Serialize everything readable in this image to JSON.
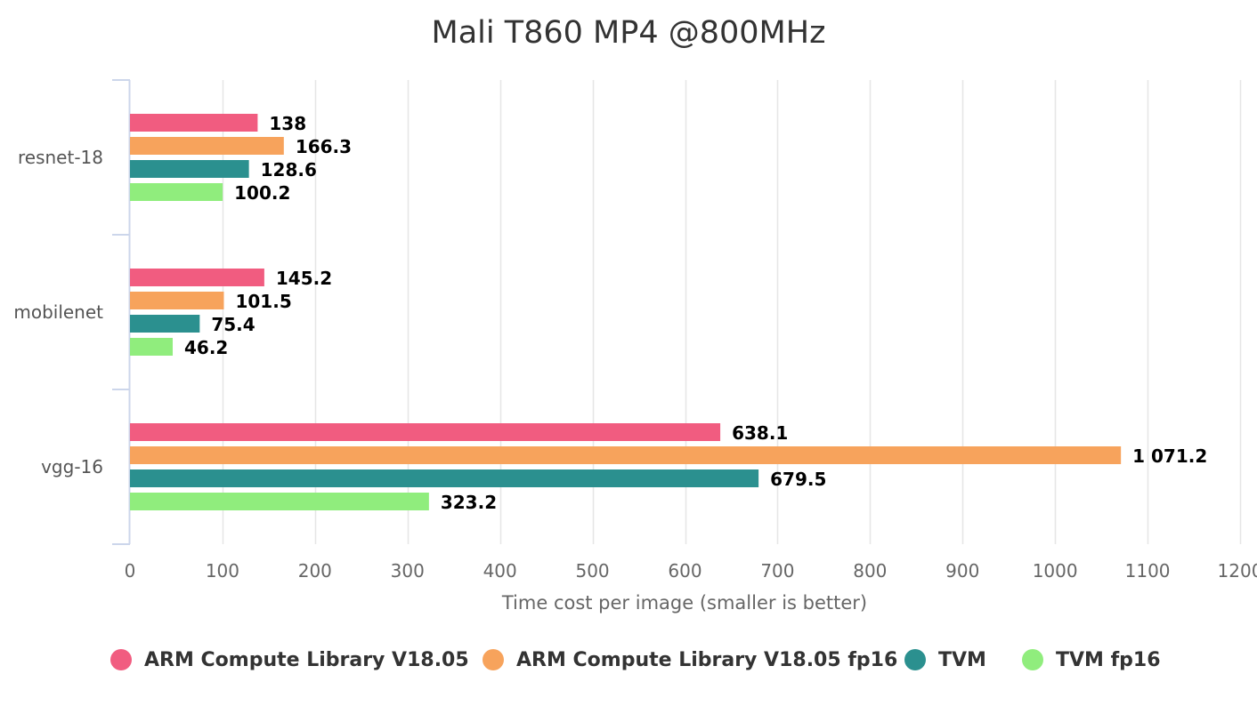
{
  "chart_data": {
    "type": "bar",
    "orientation": "horizontal",
    "title": "Mali T860 MP4 @800MHz",
    "categories": [
      "resnet-18",
      "mobilenet",
      "vgg-16"
    ],
    "series": [
      {
        "name": "ARM Compute Library V18.05",
        "color": "#f15c80",
        "values": [
          138,
          145.2,
          638.1
        ],
        "labels": [
          "138",
          "145.2",
          "638.1"
        ]
      },
      {
        "name": "ARM Compute Library V18.05 fp16",
        "color": "#f7a35c",
        "values": [
          166.3,
          101.5,
          1071.2
        ],
        "labels": [
          "166.3",
          "101.5",
          "1 071.2"
        ]
      },
      {
        "name": "TVM",
        "color": "#2b908f",
        "values": [
          128.6,
          75.4,
          679.5
        ],
        "labels": [
          "128.6",
          "75.4",
          "679.5"
        ]
      },
      {
        "name": "TVM fp16",
        "color": "#90ed7d",
        "values": [
          100.2,
          46.2,
          323.2
        ],
        "labels": [
          "100.2",
          "46.2",
          "323.2"
        ]
      }
    ],
    "xlabel": "Time cost per image (smaller is better)",
    "xlim": [
      0,
      1200
    ],
    "xticks": [
      "0",
      "100",
      "200",
      "300",
      "400",
      "500",
      "600",
      "700",
      "800",
      "900",
      "1000",
      "1100",
      "1200"
    ],
    "grid": true,
    "legend_position": "bottom"
  }
}
